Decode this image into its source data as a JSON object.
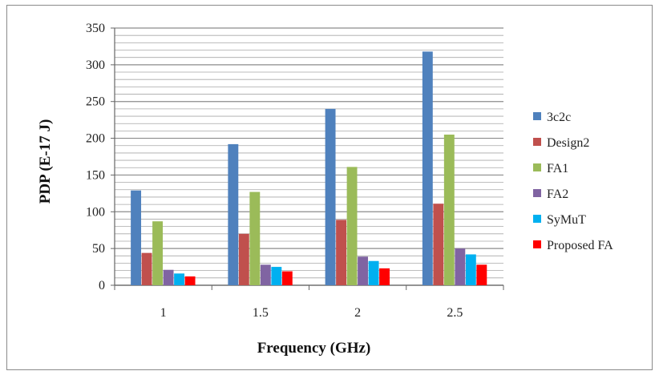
{
  "chart_data": {
    "type": "bar",
    "title": "",
    "xlabel": "Frequency (GHz)",
    "ylabel": "PDP (E-17 J)",
    "ylim": [
      0,
      350
    ],
    "yticks": [
      "0",
      "50",
      "100",
      "150",
      "200",
      "250",
      "300",
      "350"
    ],
    "grid": true,
    "legend_position": "right",
    "categories": [
      "1",
      "1.5",
      "2",
      "2.5"
    ],
    "series": [
      {
        "name": "3c2c",
        "color": "#4F81BD",
        "values": [
          129,
          192,
          240,
          318
        ]
      },
      {
        "name": "Design2",
        "color": "#C0504D",
        "values": [
          44,
          70,
          89,
          111
        ]
      },
      {
        "name": "FA1",
        "color": "#9BBB59",
        "values": [
          87,
          127,
          161,
          205
        ]
      },
      {
        "name": "FA2",
        "color": "#8064A2",
        "values": [
          21,
          28,
          39,
          50
        ]
      },
      {
        "name": "SyMuT",
        "color": "#00B0F0",
        "values": [
          16,
          25,
          33,
          42
        ]
      },
      {
        "name": "Proposed FA",
        "color": "#FF0000",
        "values": [
          12,
          19,
          23,
          28
        ]
      }
    ]
  }
}
